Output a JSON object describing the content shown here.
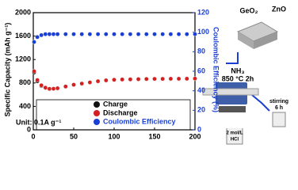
{
  "chart_data": {
    "type": "scatter",
    "ylabel": "Specific Capacity (mAh g⁻¹)",
    "y2label": "Coulombic Efficiency (%)",
    "annotation": "Unit: 0.1A g⁻¹",
    "x": [
      1,
      5,
      10,
      15,
      20,
      25,
      30,
      40,
      50,
      60,
      70,
      80,
      90,
      100,
      110,
      120,
      130,
      140,
      150,
      160,
      170,
      180,
      190,
      200
    ],
    "series": [
      {
        "name": "Charge",
        "color": "#111111",
        "values": [
          980,
          830,
          750,
          715,
          698,
          700,
          708,
          738,
          768,
          788,
          808,
          828,
          843,
          853,
          858,
          860,
          863,
          866,
          868,
          868,
          870,
          870,
          871,
          873
        ]
      },
      {
        "name": "Discharge",
        "color": "#d42020",
        "values": [
          1000,
          850,
          760,
          720,
          700,
          702,
          710,
          740,
          770,
          790,
          810,
          830,
          845,
          855,
          860,
          862,
          865,
          868,
          870,
          870,
          872,
          872,
          873,
          875
        ]
      },
      {
        "name": "Coulombic Efficiency",
        "color": "#1a3fd4",
        "axis": "y2",
        "values": [
          90,
          95,
          97,
          98,
          98,
          98,
          98,
          98,
          98,
          98,
          98,
          98,
          98,
          98,
          98,
          98,
          98,
          98,
          98,
          98,
          98,
          98,
          98,
          98
        ]
      }
    ],
    "xlim": [
      0,
      200
    ],
    "xticks": [
      0,
      50,
      100,
      150,
      200
    ],
    "ylim": [
      0,
      2000
    ],
    "yticks": [
      0,
      400,
      800,
      1200,
      1600,
      2000
    ],
    "y2lim": [
      0,
      120
    ],
    "y2ticks": [
      0,
      20,
      40,
      60,
      80,
      100,
      120
    ]
  },
  "schematic": {
    "labels": [
      "GeO₂",
      "ZnO",
      "NH₃",
      "850 °C 2h",
      "stirring",
      "6 h",
      "2 mol/L",
      "HCl"
    ]
  }
}
